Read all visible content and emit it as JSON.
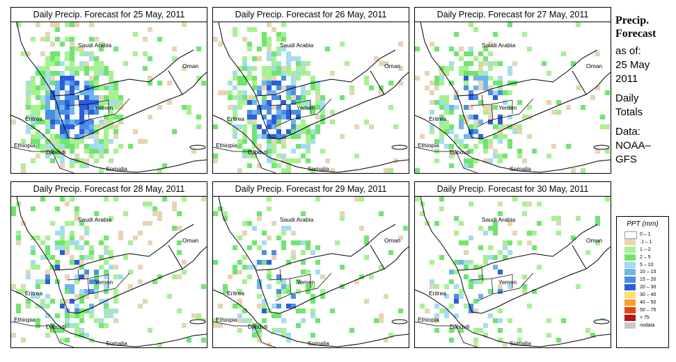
{
  "panels": [
    {
      "title": "Daily Precip. Forecast for  25 May, 2011",
      "cells": "heavy"
    },
    {
      "title": "Daily Precip. Forecast for  26 May, 2011",
      "cells": "heavy2"
    },
    {
      "title": "Daily Precip. Forecast for  27 May, 2011",
      "cells": "medium"
    },
    {
      "title": "Daily Precip. Forecast for  28 May, 2011",
      "cells": "medium2"
    },
    {
      "title": "Daily Precip. Forecast for  29 May, 2011",
      "cells": "light"
    },
    {
      "title": "Daily Precip. Forecast for  30 May, 2011",
      "cells": "light2"
    }
  ],
  "map_labels": {
    "saudi": "Saudi Arabia",
    "oman": "Oman",
    "yemen": "Yemen",
    "eritrea": "Eritrea",
    "ethiopia": "Ethiopia",
    "djibouti": "Djibouti",
    "somalia": "Somalia"
  },
  "side": {
    "title1": "Precip.",
    "title2": "Forecast",
    "asof": "as of:",
    "date1": "25 May",
    "date2": "2011",
    "daily1": "Daily",
    "daily2": "Totals",
    "data1": "Data:",
    "data2": "NOAA–",
    "data3": "GFS"
  },
  "legend": {
    "title": "PPT (mm)",
    "items": [
      {
        "label": "0 – 1",
        "color": "#ffffff"
      },
      {
        "label": ".1 – 1",
        "color": "#e8d4b4"
      },
      {
        "label": "1 – 2",
        "color": "#a6f28f"
      },
      {
        "label": "2 – 5",
        "color": "#6ee66e"
      },
      {
        "label": "5 – 10",
        "color": "#a4dcf2"
      },
      {
        "label": "10 – 15",
        "color": "#6eb4f0"
      },
      {
        "label": "15 – 20",
        "color": "#4a8ee8"
      },
      {
        "label": "20 – 30",
        "color": "#2a5ee0"
      },
      {
        "label": "30 – 40",
        "color": "#ffe066"
      },
      {
        "label": "40 – 50",
        "color": "#ffa020"
      },
      {
        "label": "50 – 75",
        "color": "#f04010"
      },
      {
        "label": "> 75",
        "color": "#c01010"
      },
      {
        "label": "nodata",
        "color": "#c8c8c8"
      }
    ]
  }
}
